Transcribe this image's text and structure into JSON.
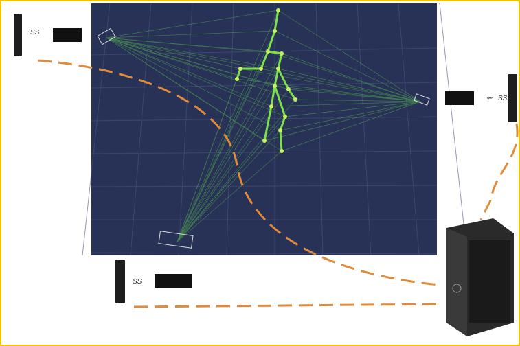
{
  "nodes": [
    {
      "label": "SS"
    },
    {
      "label": "SS"
    },
    {
      "label": "SS"
    }
  ]
}
